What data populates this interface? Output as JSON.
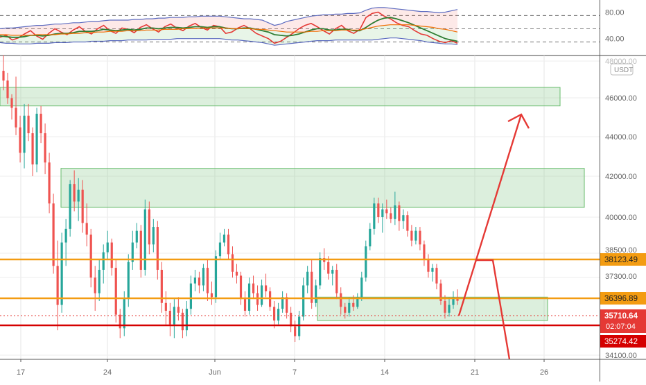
{
  "chart_data": [
    {
      "type": "line",
      "panel": "indicator",
      "ylim": [
        25,
        90
      ],
      "y_ticks": [
        {
          "value": 80,
          "label": "80.00"
        },
        {
          "value": 40,
          "label": "40.00"
        }
      ],
      "reference_lines": [
        75,
        55,
        35
      ],
      "series": [
        {
          "key": "rsi",
          "color": "#e53935",
          "values": [
            42,
            45,
            38,
            41,
            47,
            52,
            44,
            39,
            48,
            55,
            50,
            46,
            53,
            58,
            51,
            47,
            55,
            60,
            52,
            48,
            56,
            54,
            49,
            57,
            61,
            55,
            50,
            58,
            62,
            56,
            52,
            59,
            63,
            57,
            53,
            60,
            58,
            48,
            50,
            56,
            60,
            55,
            48,
            44,
            40,
            33,
            36,
            42,
            48,
            55,
            60,
            63,
            58,
            52,
            47,
            55,
            60,
            52,
            48,
            54,
            72,
            78,
            80,
            74,
            70,
            64,
            60,
            58,
            52,
            47,
            45,
            40,
            36,
            34,
            37,
            33
          ]
        },
        {
          "key": "rsi_ma",
          "color": "#2e7d32",
          "values": [
            44,
            43,
            42,
            42,
            43,
            45,
            45,
            44,
            45,
            47,
            48,
            48,
            49,
            51,
            51,
            51,
            52,
            54,
            53,
            52,
            53,
            54,
            53,
            54,
            56,
            56,
            55,
            56,
            57,
            57,
            56,
            57,
            58,
            58,
            57,
            58,
            58,
            56,
            55,
            55,
            56,
            56,
            54,
            52,
            50,
            46,
            45,
            44,
            45,
            47,
            50,
            53,
            55,
            55,
            53,
            53,
            54,
            54,
            52,
            52,
            57,
            63,
            68,
            71,
            72,
            70,
            67,
            64,
            60,
            56,
            52,
            48,
            44,
            40,
            38,
            36
          ]
        },
        {
          "key": "signal",
          "color": "#ef6c00",
          "values": [
            46,
            46,
            45,
            45,
            45,
            45,
            46,
            46,
            46,
            46,
            47,
            47,
            48,
            48,
            49,
            49,
            50,
            50,
            51,
            51,
            51,
            52,
            52,
            52,
            53,
            53,
            53,
            54,
            54,
            54,
            55,
            55,
            55,
            56,
            56,
            56,
            56,
            56,
            55,
            55,
            55,
            55,
            54,
            54,
            53,
            52,
            51,
            50,
            50,
            50,
            50,
            51,
            51,
            52,
            52,
            52,
            53,
            53,
            53,
            53,
            55,
            57,
            59,
            60,
            61,
            61,
            61,
            61,
            60,
            59,
            58,
            57,
            55,
            54,
            52,
            50
          ]
        },
        {
          "key": "band_upper",
          "color": "#5c6bc0",
          "values": [
            55,
            56,
            56,
            57,
            58,
            59,
            60,
            60,
            61,
            62,
            62,
            63,
            64,
            64,
            65,
            66,
            66,
            67,
            68,
            68,
            68,
            68,
            69,
            69,
            70,
            70,
            71,
            71,
            72,
            72,
            72,
            73,
            73,
            74,
            74,
            74,
            74,
            73,
            72,
            71,
            70,
            70,
            69,
            68,
            64,
            60,
            62,
            66,
            68,
            70,
            72,
            74,
            75,
            76,
            76,
            77,
            77,
            78,
            78,
            79,
            83,
            86,
            87,
            87,
            86,
            85,
            84,
            83,
            82,
            81,
            81,
            80,
            79,
            80,
            82,
            84
          ]
        },
        {
          "key": "band_lower",
          "color": "#5c6bc0",
          "values": [
            34,
            33,
            33,
            32,
            32,
            32,
            33,
            33,
            33,
            34,
            34,
            34,
            35,
            35,
            35,
            36,
            36,
            36,
            37,
            37,
            37,
            38,
            38,
            38,
            38,
            39,
            39,
            39,
            39,
            40,
            40,
            40,
            40,
            40,
            40,
            40,
            40,
            39,
            38,
            38,
            37,
            36,
            35,
            34,
            32,
            30,
            31,
            32,
            33,
            34,
            35,
            36,
            37,
            37,
            37,
            38,
            38,
            38,
            38,
            38,
            38,
            38,
            39,
            40,
            41,
            41,
            40,
            39,
            38,
            37,
            35,
            34,
            33,
            32,
            32,
            31
          ]
        }
      ]
    },
    {
      "type": "candlestick",
      "panel": "price",
      "title": "",
      "xlabel": "",
      "ylabel": "",
      "currency_badge": "USDT",
      "x_ticks": [
        "17",
        "24",
        "Jun",
        "7",
        "14",
        "21",
        "26"
      ],
      "y_ticks": [
        "48000.00",
        "46000.00",
        "44000.00",
        "42000.00",
        "40000.00",
        "38500.00",
        "37300.00",
        "34100.00"
      ],
      "grid": true,
      "candles": [
        [
          47500,
          48300,
          46500,
          47000
        ],
        [
          47000,
          47400,
          45800,
          46100
        ],
        [
          46100,
          46300,
          45000,
          45600
        ],
        [
          45600,
          47200,
          44200,
          44600
        ],
        [
          44600,
          45200,
          42800,
          43300
        ],
        [
          43300,
          45800,
          42500,
          45200
        ],
        [
          45200,
          45800,
          43900,
          44300
        ],
        [
          44300,
          44600,
          42100,
          42700
        ],
        [
          42700,
          45600,
          42300,
          45300
        ],
        [
          45300,
          45700,
          43800,
          44300
        ],
        [
          44300,
          44800,
          42200,
          42800
        ],
        [
          42800,
          43300,
          40200,
          40700
        ],
        [
          40700,
          41200,
          37100,
          37500
        ],
        [
          37500,
          38800,
          34200,
          35500
        ],
        [
          35500,
          39200,
          35100,
          38700
        ],
        [
          38700,
          39900,
          37500,
          39400
        ],
        [
          39400,
          41900,
          39000,
          41700
        ],
        [
          41700,
          42400,
          40300,
          40800
        ],
        [
          40800,
          42000,
          39800,
          41400
        ],
        [
          41400,
          41900,
          39200,
          39700
        ],
        [
          39700,
          40700,
          38500,
          39100
        ],
        [
          39100,
          39400,
          36400,
          36900
        ],
        [
          36900,
          37500,
          35200,
          36100
        ],
        [
          36100,
          37800,
          35700,
          37300
        ],
        [
          37300,
          38600,
          36600,
          38200
        ],
        [
          38200,
          39300,
          37800,
          38700
        ],
        [
          38700,
          38900,
          37000,
          37400
        ],
        [
          37400,
          37800,
          34600,
          35000
        ],
        [
          35000,
          35300,
          33800,
          34300
        ],
        [
          34300,
          36200,
          33900,
          35800
        ],
        [
          35800,
          38100,
          35400,
          37700
        ],
        [
          37700,
          39300,
          37300,
          38700
        ],
        [
          38700,
          39700,
          38400,
          39300
        ],
        [
          39300,
          39600,
          36900,
          37300
        ],
        [
          37300,
          40900,
          37000,
          40400
        ],
        [
          40400,
          40800,
          38100,
          38600
        ],
        [
          38600,
          39900,
          38200,
          39500
        ],
        [
          39500,
          39800,
          36800,
          37300
        ],
        [
          37300,
          37700,
          35100,
          35600
        ],
        [
          35600,
          36200,
          34500,
          35200
        ],
        [
          35200,
          35600,
          33900,
          34500
        ],
        [
          34500,
          35800,
          33800,
          35400
        ],
        [
          35400,
          35900,
          34700,
          35100
        ],
        [
          35100,
          35300,
          33800,
          34200
        ],
        [
          34200,
          35700,
          33900,
          35300
        ],
        [
          35300,
          37000,
          35000,
          36600
        ],
        [
          36600,
          37300,
          36200,
          36900
        ],
        [
          36900,
          37200,
          36100,
          36500
        ],
        [
          36500,
          37600,
          36200,
          37400
        ],
        [
          37400,
          37800,
          35700,
          36100
        ],
        [
          36100,
          36700,
          35500,
          35900
        ],
        [
          35900,
          38300,
          35600,
          38000
        ],
        [
          38000,
          39200,
          37800,
          38700
        ],
        [
          38700,
          39400,
          38500,
          39100
        ],
        [
          39100,
          39400,
          37800,
          38100
        ],
        [
          38100,
          38500,
          36900,
          37200
        ],
        [
          37200,
          37600,
          36600,
          37000
        ],
        [
          37000,
          37200,
          35500,
          35800
        ],
        [
          35800,
          36200,
          34900,
          35200
        ],
        [
          35200,
          36900,
          35000,
          36600
        ],
        [
          36600,
          37000,
          35800,
          36100
        ],
        [
          36100,
          36500,
          35200,
          35500
        ],
        [
          35500,
          36800,
          35400,
          36500
        ],
        [
          36500,
          37100,
          35900,
          36200
        ],
        [
          36200,
          36400,
          35200,
          35400
        ],
        [
          35400,
          35700,
          34300,
          34700
        ],
        [
          34700,
          35600,
          34500,
          35300
        ],
        [
          35300,
          36200,
          35100,
          35900
        ],
        [
          35900,
          36100,
          34800,
          35100
        ],
        [
          35100,
          35400,
          34100,
          34400
        ],
        [
          34400,
          34700,
          33600,
          33900
        ],
        [
          33900,
          35200,
          33700,
          34900
        ],
        [
          34900,
          36900,
          34700,
          36500
        ],
        [
          36500,
          37500,
          36100,
          37200
        ],
        [
          37200,
          37800,
          35300,
          35600
        ],
        [
          35600,
          36800,
          35400,
          36500
        ],
        [
          36500,
          38200,
          36300,
          37900
        ],
        [
          37900,
          38400,
          37300,
          37700
        ],
        [
          37700,
          38000,
          36800,
          37100
        ],
        [
          37100,
          37500,
          36500,
          37300
        ],
        [
          37300,
          37600,
          35800,
          36100
        ],
        [
          36100,
          36400,
          35000,
          35400
        ],
        [
          35400,
          35600,
          34800,
          35100
        ],
        [
          35100,
          35900,
          34900,
          35600
        ],
        [
          35600,
          36000,
          35200,
          35400
        ],
        [
          35400,
          36100,
          35300,
          35900
        ],
        [
          35900,
          37200,
          35700,
          36900
        ],
        [
          36900,
          38800,
          36700,
          38500
        ],
        [
          38500,
          39700,
          38300,
          39400
        ],
        [
          39400,
          41000,
          39100,
          40700
        ],
        [
          40700,
          41000,
          39700,
          40000
        ],
        [
          40000,
          40700,
          39200,
          40400
        ],
        [
          40400,
          40900,
          39900,
          40200
        ],
        [
          40200,
          40500,
          39700,
          39900
        ],
        [
          39900,
          41300,
          39600,
          40600
        ],
        [
          40600,
          40800,
          39300,
          39800
        ],
        [
          39800,
          40400,
          39400,
          40100
        ],
        [
          40100,
          40300,
          39000,
          39300
        ],
        [
          39300,
          39600,
          38500,
          38800
        ],
        [
          38800,
          39500,
          38600,
          39300
        ],
        [
          39300,
          39500,
          38300,
          38600
        ],
        [
          38600,
          38800,
          37500,
          37800
        ],
        [
          37800,
          38100,
          36900,
          37200
        ],
        [
          37200,
          37600,
          36700,
          37400
        ],
        [
          37400,
          37600,
          36300,
          36600
        ],
        [
          36600,
          36800,
          35500,
          35700
        ],
        [
          35700,
          36000,
          34800,
          35100
        ],
        [
          35100,
          35900,
          34900,
          35500
        ],
        [
          35500,
          36200,
          35300,
          35900
        ],
        [
          35900,
          36300,
          35500,
          35710
        ]
      ],
      "zones": [
        {
          "from": 45700,
          "to": 46650
        },
        {
          "from": 40500,
          "to": 42500
        },
        {
          "from": 34700,
          "to": 35900
        }
      ],
      "horizontal_lines": [
        {
          "value": 38123.49,
          "label": "38123.49",
          "color": "#f39c12"
        },
        {
          "value": 36396.89,
          "label": "36396.89",
          "color": "#f39c12"
        },
        {
          "value": 35274.42,
          "label": "35274.42",
          "color": "#d50000"
        }
      ],
      "last_price": {
        "value": 35710.64,
        "label": "35710.64",
        "countdown": "02:07:04",
        "color": "#e53935"
      },
      "arrows": [
        {
          "color": "#e53935",
          "description": "projected rise toward upper zone"
        },
        {
          "color": "#e53935",
          "description": "alternative decline below support"
        }
      ]
    }
  ]
}
